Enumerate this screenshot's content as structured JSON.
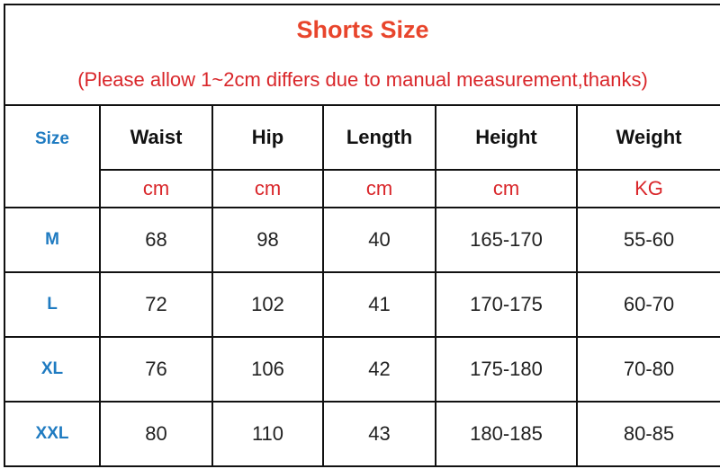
{
  "title": "Shorts Size",
  "subtitle": "(Please allow 1~2cm differs due to manual measurement,thanks)",
  "colors": {
    "title": "#e8452c",
    "subtitle": "#d9262a",
    "size_label": "#1f7bc1"
  },
  "headers": [
    "Size",
    "Waist",
    "Hip",
    "Length",
    "Height",
    "Weight"
  ],
  "units": [
    "cm",
    "cm",
    "cm",
    "cm",
    "KG"
  ],
  "rows": [
    [
      "M",
      "68",
      "98",
      "40",
      "165-170",
      "55-60"
    ],
    [
      "L",
      "72",
      "102",
      "41",
      "170-175",
      "60-70"
    ],
    [
      "XL",
      "76",
      "106",
      "42",
      "175-180",
      "70-80"
    ],
    [
      "XXL",
      "80",
      "110",
      "43",
      "180-185",
      "80-85"
    ]
  ]
}
